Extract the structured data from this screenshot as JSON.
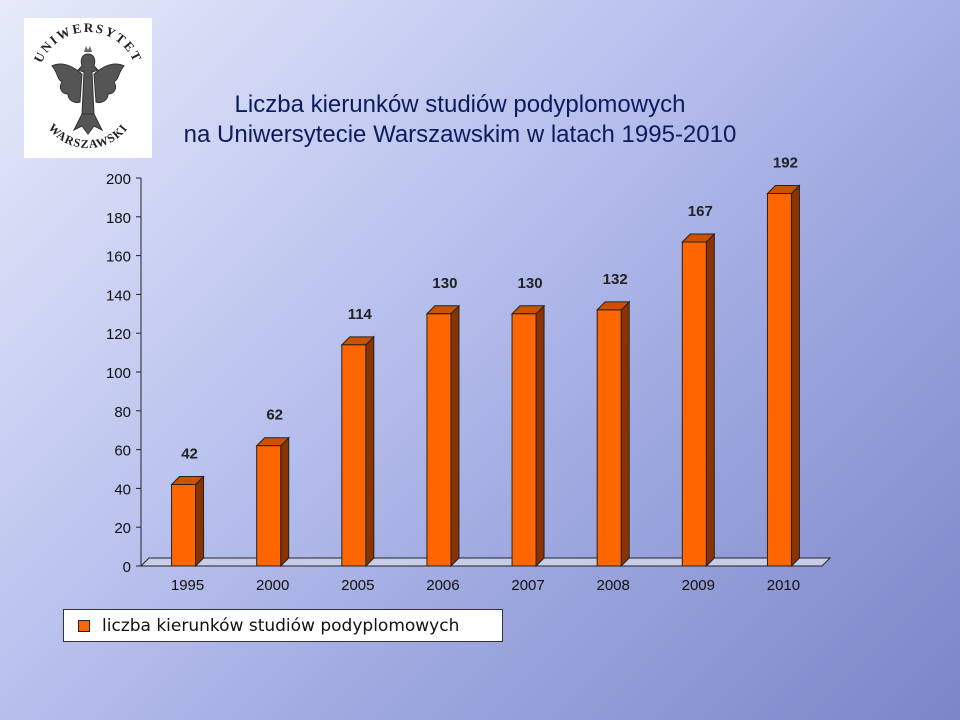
{
  "logo": {
    "text_top": "UNIWERSYTET",
    "text_bottom": "WARSZAWSKI",
    "icon": "eagle-seal-icon"
  },
  "title": {
    "line1": "Liczba kierunków studiów podyplomowych",
    "line2": "na Uniwersytecie Warszawskim w latach 1995-2010"
  },
  "legend": {
    "label": "liczba kierunków studiów podyplomowych",
    "color": "#ff6600"
  },
  "colors": {
    "bar_front": "#ff6600",
    "bar_side": "#8a3300",
    "bar_top": "#cc5200"
  },
  "chart_data": {
    "type": "bar",
    "categories": [
      "1995",
      "2000",
      "2005",
      "2006",
      "2007",
      "2008",
      "2009",
      "2010"
    ],
    "series": [
      {
        "name": "liczba kierunków studiów podyplomowych",
        "values": [
          42,
          62,
          114,
          130,
          130,
          132,
          167,
          192
        ]
      }
    ],
    "data_labels": [
      "42",
      "62",
      "114",
      "130",
      "130",
      "132",
      "167",
      "192"
    ],
    "y_ticks": [
      "0",
      "20",
      "40",
      "60",
      "80",
      "100",
      "120",
      "140",
      "160",
      "180",
      "200"
    ],
    "ylim": [
      0,
      200
    ],
    "title": "Liczba kierunków studiów podyplomowych na Uniwersytecie Warszawskim w latach 1995-2010",
    "xlabel": "",
    "ylabel": "",
    "grid": false,
    "legend_position": "bottom-left",
    "style": "3d-column"
  }
}
